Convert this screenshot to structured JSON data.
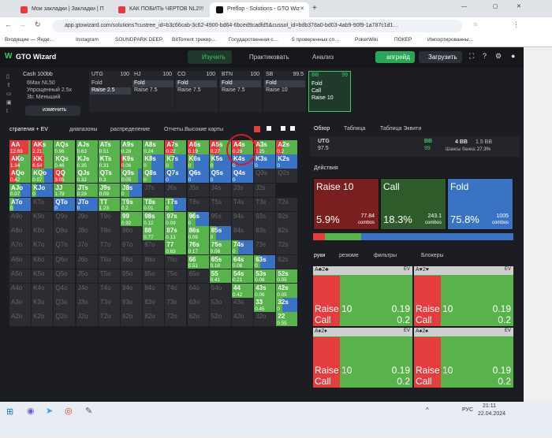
{
  "tabs": [
    {
      "title": "Мои закладки | Закладки | П",
      "active": false,
      "color": "#e53d3d"
    },
    {
      "title": "КАК ПОБИТЬ ЧЕРТОВ NL2!!!",
      "active": false,
      "color": "#e53d3d"
    },
    {
      "title": "Preflop - Solutions - GTO Wiz",
      "active": true,
      "color": "#111"
    }
  ],
  "url": "app.gtowizard.com/solutions?custree_id=b3c66cab-3c62-4900-bd64-6bced9cadfd5&cussol_id=bdb378a0-bd03-4ab9-90f9-1a787c1d1…",
  "bookmarks": [
    "Входящие — Янде…",
    "Instagram",
    "SOUNDPARK DEEP",
    "BitTorrent трекер…",
    "Государственная с…",
    "5 проверенных сп…",
    "PokerWiki",
    "ПОКЕР",
    "Импортированны…"
  ],
  "nav": {
    "brand": "GTO Wizard",
    "study": "Изучить",
    "practice": "Практиковать",
    "analyze": "Анализ",
    "upgrade": "апгрейд",
    "upload": "Загрузить"
  },
  "game": {
    "title": "Cash 100bb",
    "lines": [
      "6Max NL50",
      "Упрощенный 2.5x",
      "3b: Меньший"
    ],
    "change": "изменить"
  },
  "positions": [
    {
      "name": "UTG",
      "stack": "100",
      "rows": [
        "Fold",
        "Raise 2.5"
      ],
      "sel": 1
    },
    {
      "name": "HJ",
      "stack": "100",
      "rows": [
        "Fold",
        "Raise 7.5"
      ],
      "sel": 0
    },
    {
      "name": "CO",
      "stack": "100",
      "rows": [
        "Fold",
        "Raise 7.5"
      ],
      "sel": 0
    },
    {
      "name": "BTN",
      "stack": "100",
      "rows": [
        "Fold",
        "Raise 7.5"
      ],
      "sel": 0
    },
    {
      "name": "SB",
      "stack": "99.5",
      "rows": [
        "Fold",
        "Raise 10"
      ],
      "sel": 0
    },
    {
      "name": "BB",
      "stack": "99",
      "rows": [
        "Fold",
        "Call",
        "Raise 10"
      ],
      "sel": -1
    }
  ],
  "toolbar": {
    "strategy": "стратегия + EV",
    "ranges": "диапазоны",
    "dist": "распределение",
    "reports": "Отчеты.Высокие карты"
  },
  "panel": {
    "tabs": [
      "Обзор",
      "Таблица",
      "Таблица Эквити"
    ],
    "utg": "UTG",
    "utg_stack": "97.5",
    "bb": "BB",
    "bb_stack": "99",
    "pot": "4 BB",
    "pot2": "1.5 BB",
    "eq_label": "Шансы банка:",
    "eq": "27.3%",
    "actions": "Действия"
  },
  "actions": [
    {
      "name": "Raise 10",
      "pct": "5.9%",
      "combos": "77.84",
      "clabel": "combos",
      "color": "#e53d3d"
    },
    {
      "name": "Call",
      "pct": "18.3%",
      "combos": "243.1",
      "clabel": "combos",
      "color": "#58b34c"
    },
    {
      "name": "Fold",
      "pct": "75.8%",
      "combos": "1005",
      "clabel": "combos",
      "color": "#3b73c4"
    }
  ],
  "lowertabs": [
    "руки",
    "резюме",
    "фильтры",
    "Блокеры"
  ],
  "hands": [
    {
      "hand": "A♣2♣",
      "ev": "EV",
      "r": "Raise 10",
      "rv": "0.19",
      "c": "Call",
      "cv": "0.2"
    },
    {
      "hand": "A♥2♥",
      "ev": "EV",
      "r": "Raise 10",
      "rv": "0.19",
      "c": "Call",
      "cv": "0.2"
    },
    {
      "hand": "A♦2♦",
      "ev": "EV",
      "r": "Raise 10",
      "rv": "0.19",
      "c": "Call",
      "cv": "0.2"
    },
    {
      "hand": "A♠2♠",
      "ev": "EV",
      "r": "Raise 10",
      "rv": "0.19",
      "c": "Call",
      "cv": "0.2"
    }
  ],
  "clock": {
    "time": "21:11",
    "date": "22.04.2024",
    "lang": "РУС"
  },
  "matrix": [
    [
      "AA|12.69|r90g10",
      "AKs|2.21|r50g50",
      "AQs|0.96|g100",
      "AJs|0.63|g100",
      "ATs|0.51|g100",
      "A9s|0.28|g100",
      "A8s|0.24|g100",
      "A7s|0.22|r40g60",
      "A6s|0.19|r40g60",
      "A5s|0.27|r45g55",
      "A4s|0.29|r40g60",
      "A3s|0.25|r25g75",
      "A2s|0.2|r30g70"
    ],
    [
      "AKo|1.34|r40g60",
      "KK|6.54|r60g40",
      "KQs|0.46|g100",
      "KJs|0.35|g100",
      "KTs|0.31|g100",
      "K9s|0.06|r10g90",
      "K8s|0|g40b60",
      "K7s|0|g40b60",
      "K6s|0|g30b70",
      "K5s|0|g20b80",
      "K4s|0|f",
      "K3s|0|f",
      "K2s|0|f"
    ],
    [
      "AQo|0.42|r30g70",
      "KQo|0.07|g60b40",
      "QQ|3.05|r40g60",
      "QJs|0.32|g100",
      "QTs|0.3|g100",
      "Q9s|0.05|g80b20",
      "Q8s|0|g40b60",
      "Q7s|0|f",
      "Q6s|0|f",
      "Q5s|0|f",
      "Q4s|0|f",
      "Q3s||b",
      "Q2s||b"
    ],
    [
      "AJo|0.07|g50b50",
      "KJo|0|g20b80",
      "JJ|1.79|g100",
      "JTs|0.28|g100",
      "J9s|0.09|g100",
      "J8s|0|g40b60",
      "J7s||b",
      "J6s||b",
      "J5s||b",
      "J4s||b",
      "J3s||b",
      "J2s||b"
    ],
    [
      "ATo|0|g20b80",
      "KTo||b",
      "QTo|0|f",
      "JTo|0|f",
      "TT|1.23|g100",
      "T9s|0.2|g100",
      "T8s|0.01|g100",
      "T7s|0|g40b60",
      "T6s||b",
      "T5s||b",
      "T4s||b",
      "T3s||b",
      "T2s||b"
    ],
    [
      "A9o||b",
      "K9o||b",
      "Q9o||b",
      "J9o||b",
      "T9o||b",
      "99|0.92|g100",
      "98s|0.12|g100",
      "97s|0.09|g100",
      "96s|0|g40b60",
      "95s||b",
      "94s||b",
      "93s||b",
      "92s||b"
    ],
    [
      "A8o||b",
      "K8o||b",
      "Q8o||b",
      "J8o||b",
      "T8o||b",
      "98o||b",
      "88|0.77|g100",
      "87s|0.13|g100",
      "86s|0.09|g100",
      "85s|0|g30b70",
      "84s||b",
      "83s||b",
      "82s||b"
    ],
    [
      "A7o||b",
      "K7o||b",
      "Q7o||b",
      "J7o||b",
      "T7o||b",
      "97o||b",
      "87o||b",
      "77|0.63|g100",
      "76s|0.17|g100",
      "75s|0.06|g100",
      "74s|0|g30b70",
      "73s||b",
      "72s||b"
    ],
    [
      "A6o||b",
      "K6o||b",
      "Q6o||b",
      "J6o||b",
      "T6o||b",
      "96o||b",
      "86o||b",
      "76o||b",
      "66|0.51|g100",
      "65s|0.18|g100",
      "64s|0.08|g100",
      "63s|0|g30b70",
      "62s||b"
    ],
    [
      "A5o||b",
      "K5o||b",
      "Q5o||b",
      "J5o||b",
      "T5o||b",
      "95o||b",
      "85o||b",
      "75o||b",
      "65o||b",
      "55|0.41|g100",
      "54s|0.21|g100",
      "53s|0.08|g100",
      "52s|0.05|g100"
    ],
    [
      "A4o||b",
      "K4o||b",
      "Q4o||b",
      "J4o||b",
      "T4o||b",
      "94o||b",
      "84o||b",
      "74o||b",
      "64o||b",
      "54o||b",
      "44|0.42|g100",
      "43s|0.06|g100",
      "42s|0.05|g100"
    ],
    [
      "A3o||b",
      "K3o||b",
      "Q3o||b",
      "J3o||b",
      "T3o||b",
      "93o||b",
      "83o||b",
      "73o||b",
      "63o||b",
      "53o||b",
      "43o||b",
      "33|0.45|g100",
      "32s|0|g30b70"
    ],
    [
      "A2o||b",
      "K2o||b",
      "Q2o||b",
      "J2o||b",
      "T2o||b",
      "92o||b",
      "82o||b",
      "72o||b",
      "62o||b",
      "52o||b",
      "42o||b",
      "32o||b",
      "22|0.55|g100"
    ]
  ]
}
